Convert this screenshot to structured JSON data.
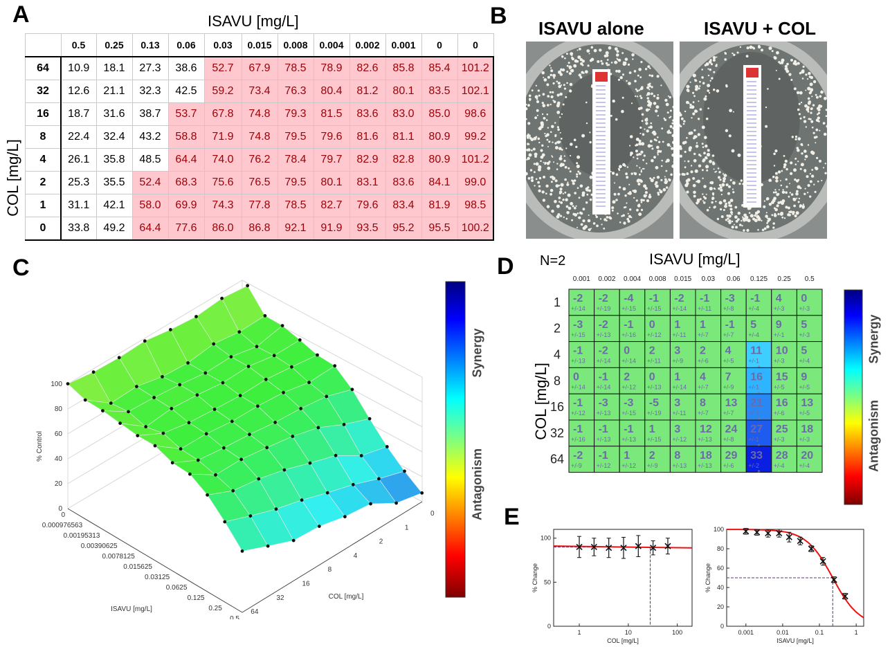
{
  "panel_labels": [
    "A",
    "B",
    "C",
    "D",
    "E"
  ],
  "panelA": {
    "x_title": "ISAVU [mg/L]",
    "y_title": "COL [mg/L]",
    "col_headers": [
      "0.5",
      "0.25",
      "0.13",
      "0.06",
      "0.03",
      "0.015",
      "0.008",
      "0.004",
      "0.002",
      "0.001",
      "0",
      "0"
    ],
    "row_headers": [
      "64",
      "32",
      "16",
      "8",
      "4",
      "2",
      "1",
      "0"
    ],
    "cells": [
      [
        "10.9",
        "18.1",
        "27.3",
        "38.6",
        "52.7",
        "67.9",
        "78.5",
        "78.9",
        "82.6",
        "85.8",
        "85.4",
        "101.2"
      ],
      [
        "12.6",
        "21.1",
        "32.3",
        "42.5",
        "59.2",
        "73.4",
        "76.3",
        "80.4",
        "81.2",
        "80.1",
        "83.5",
        "102.1"
      ],
      [
        "18.7",
        "31.6",
        "38.7",
        "53.7",
        "67.8",
        "74.8",
        "79.3",
        "81.5",
        "83.6",
        "83.0",
        "85.0",
        "98.6"
      ],
      [
        "22.4",
        "32.4",
        "43.2",
        "58.8",
        "71.9",
        "74.8",
        "79.5",
        "79.6",
        "81.6",
        "81.1",
        "80.9",
        "99.2"
      ],
      [
        "26.1",
        "35.8",
        "48.5",
        "64.4",
        "74.0",
        "76.2",
        "78.4",
        "79.7",
        "82.9",
        "82.8",
        "80.9",
        "101.2"
      ],
      [
        "25.3",
        "35.5",
        "52.4",
        "68.3",
        "75.6",
        "76.5",
        "79.5",
        "80.1",
        "83.1",
        "83.6",
        "84.1",
        "99.0"
      ],
      [
        "31.1",
        "42.1",
        "58.0",
        "69.9",
        "74.3",
        "77.8",
        "78.5",
        "82.7",
        "79.6",
        "83.4",
        "81.9",
        "98.5"
      ],
      [
        "33.8",
        "49.2",
        "64.4",
        "77.6",
        "86.0",
        "86.8",
        "92.1",
        "91.9",
        "93.5",
        "95.2",
        "95.5",
        "100.2"
      ]
    ],
    "pink_start": [
      4,
      4,
      3,
      3,
      3,
      2,
      2,
      2
    ],
    "pink_color": "#ffc7ce",
    "pink_text_color": "#9c0006"
  },
  "panelB": {
    "title_left": "ISAVU alone",
    "title_right": "ISAVU + COL"
  },
  "panelC": {
    "z_label": "% Control",
    "x_label": "ISAVU [mg/L]",
    "y_label": "COL [mg/L]",
    "z_ticks": [
      "0",
      "20",
      "40",
      "60",
      "80",
      "100"
    ],
    "isavu_ticks": [
      "0",
      "0.000976563",
      "0.00195313",
      "0.00390625",
      "0.0078125",
      "0.015625",
      "0.03125",
      "0.0625",
      "0.125",
      "0.25",
      "0.5"
    ],
    "col_ticks": [
      "0",
      "1",
      "2",
      "4",
      "8",
      "16",
      "32",
      "64"
    ],
    "colorbar_top": "Synergy",
    "colorbar_bottom": "Antagonism"
  },
  "panelD": {
    "n_label": "N=2",
    "x_title": "ISAVU [mg/L]",
    "y_title": "COL [mg/L]",
    "col_headers": [
      "0.001",
      "0.002",
      "0.004",
      "0.008",
      "0.015",
      "0.03",
      "0.06",
      "0.125",
      "0.25",
      "0.5"
    ],
    "row_headers": [
      "1",
      "2",
      "4",
      "8",
      "16",
      "32",
      "64"
    ],
    "values": [
      [
        "-2",
        "-2",
        "-4",
        "-1",
        "-2",
        "-1",
        "-3",
        "-1",
        "4",
        "0"
      ],
      [
        "-3",
        "-2",
        "-1",
        "0",
        "1",
        "1",
        "-1",
        "5",
        "9",
        "5"
      ],
      [
        "-1",
        "-2",
        "0",
        "2",
        "3",
        "2",
        "4",
        "11",
        "10",
        "5"
      ],
      [
        "0",
        "-1",
        "2",
        "0",
        "1",
        "4",
        "7",
        "16",
        "15",
        "9"
      ],
      [
        "-1",
        "-3",
        "-3",
        "-5",
        "3",
        "8",
        "13",
        "21",
        "16",
        "13"
      ],
      [
        "-1",
        "-1",
        "-1",
        "1",
        "3",
        "12",
        "24",
        "27",
        "25",
        "18"
      ],
      [
        "-2",
        "-1",
        "1",
        "2",
        "8",
        "18",
        "29",
        "33",
        "28",
        "20"
      ]
    ],
    "errors": [
      [
        "+/-14",
        "+/-19",
        "+/-15",
        "+/-15",
        "+/-14",
        "+/-11",
        "+/-8",
        "+/-4",
        "+/-3",
        "+/-3"
      ],
      [
        "+/-15",
        "+/-13",
        "+/-16",
        "+/-12",
        "+/-11",
        "+/-7",
        "+/-7",
        "+/-4",
        "+/-1",
        "+/-3"
      ],
      [
        "+/-13",
        "+/-14",
        "+/-14",
        "+/-11",
        "+/-9",
        "+/-6",
        "+/-5",
        "+/-1",
        "+/-3",
        "+/-4"
      ],
      [
        "+/-14",
        "+/-14",
        "+/-12",
        "+/-13",
        "+/-14",
        "+/-7",
        "+/-9",
        "+/-1",
        "+/-5",
        "+/-5"
      ],
      [
        "+/-12",
        "+/-13",
        "+/-15",
        "+/-19",
        "+/-11",
        "+/-7",
        "+/-7",
        "+/-1",
        "+/-6",
        "+/-5"
      ],
      [
        "+/-16",
        "+/-13",
        "+/-13",
        "+/-15",
        "+/-12",
        "+/-13",
        "+/-8",
        "+/-1",
        "+/-3",
        "+/-3"
      ],
      [
        "+/-9",
        "+/-12",
        "+/-12",
        "+/-9",
        "+/-13",
        "+/-13",
        "+/-6",
        "+/-2",
        "+/-4",
        "+/-4"
      ]
    ],
    "significant_marker": "*",
    "cell_green": "#7be87b",
    "colorbar_top": "Synergy",
    "colorbar_bottom": "Antagonism"
  },
  "panelE": {
    "left": {
      "ylabel": "% Change",
      "xlabel": "COL [mg/L]",
      "y_ticks": [
        "0",
        "50",
        "100"
      ],
      "x_ticks": [
        "1",
        "10",
        "100"
      ]
    },
    "right": {
      "ylabel": "% Change",
      "xlabel": "ISAVU [mg/L]",
      "y_ticks": [
        "0",
        "20",
        "40",
        "60",
        "80",
        "100"
      ],
      "x_ticks": [
        "0.001",
        "0.01",
        "0.1",
        "1"
      ]
    }
  },
  "chart_data": [
    {
      "type": "line",
      "title": "",
      "xlabel": "COL [mg/L]",
      "ylabel": "% Change",
      "x_scale": "log",
      "xlim": [
        0.3,
        200
      ],
      "ylim": [
        0,
        110
      ],
      "series": [
        {
          "kind": "points",
          "x": [
            1,
            2,
            4,
            8,
            16,
            32,
            64
          ],
          "y": [
            90,
            90,
            89,
            89,
            91,
            89,
            91
          ],
          "err": [
            12,
            10,
            11,
            12,
            12,
            8,
            9
          ]
        },
        {
          "kind": "fit",
          "x": [
            0.3,
            200
          ],
          "y": [
            91,
            89
          ]
        }
      ],
      "reference": {
        "x": 28,
        "y": 90
      }
    },
    {
      "type": "line",
      "title": "",
      "xlabel": "ISAVU [mg/L]",
      "ylabel": "% Change",
      "x_scale": "log",
      "xlim": [
        0.0003,
        1.6
      ],
      "ylim": [
        0,
        100
      ],
      "series": [
        {
          "kind": "points",
          "x": [
            0.001,
            0.002,
            0.004,
            0.008,
            0.015,
            0.03,
            0.06,
            0.125,
            0.25,
            0.5
          ],
          "y": [
            98,
            97,
            96,
            96,
            92,
            88,
            80,
            67,
            48,
            31
          ],
          "err": [
            3,
            3,
            4,
            4,
            5,
            4,
            3,
            4,
            3,
            3
          ]
        },
        {
          "kind": "fit",
          "ec50": 0.23,
          "hill": 1.2,
          "top": 100
        }
      ],
      "reference": {
        "x": 0.23,
        "y": 50
      }
    }
  ]
}
